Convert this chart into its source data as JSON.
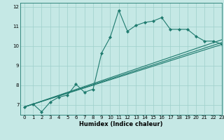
{
  "title": "",
  "xlabel": "Humidex (Indice chaleur)",
  "xlim": [
    -0.5,
    23
  ],
  "ylim": [
    6.5,
    12.2
  ],
  "yticks": [
    7,
    8,
    9,
    10,
    11,
    12
  ],
  "xticks": [
    0,
    1,
    2,
    3,
    4,
    5,
    6,
    7,
    8,
    9,
    10,
    11,
    12,
    13,
    14,
    15,
    16,
    17,
    18,
    19,
    20,
    21,
    22,
    23
  ],
  "bg_color": "#c5e8e5",
  "line_color": "#1e7a6e",
  "grid_color": "#9ecfca",
  "main_line": {
    "x": [
      0,
      1,
      2,
      3,
      4,
      5,
      6,
      7,
      8,
      9,
      10,
      11,
      12,
      13,
      14,
      15,
      16,
      17,
      18,
      19,
      20,
      21,
      22,
      23
    ],
    "y": [
      6.9,
      7.05,
      6.65,
      7.15,
      7.4,
      7.5,
      8.05,
      7.65,
      7.8,
      9.65,
      10.45,
      11.82,
      10.75,
      11.05,
      11.2,
      11.27,
      11.45,
      10.85,
      10.85,
      10.85,
      10.5,
      10.25,
      10.25,
      10.1
    ]
  },
  "straight_lines": [
    {
      "x": [
        0,
        23
      ],
      "y": [
        6.9,
        10.08
      ]
    },
    {
      "x": [
        0,
        23
      ],
      "y": [
        6.9,
        10.18
      ]
    },
    {
      "x": [
        0,
        23
      ],
      "y": [
        6.9,
        10.32
      ]
    }
  ]
}
